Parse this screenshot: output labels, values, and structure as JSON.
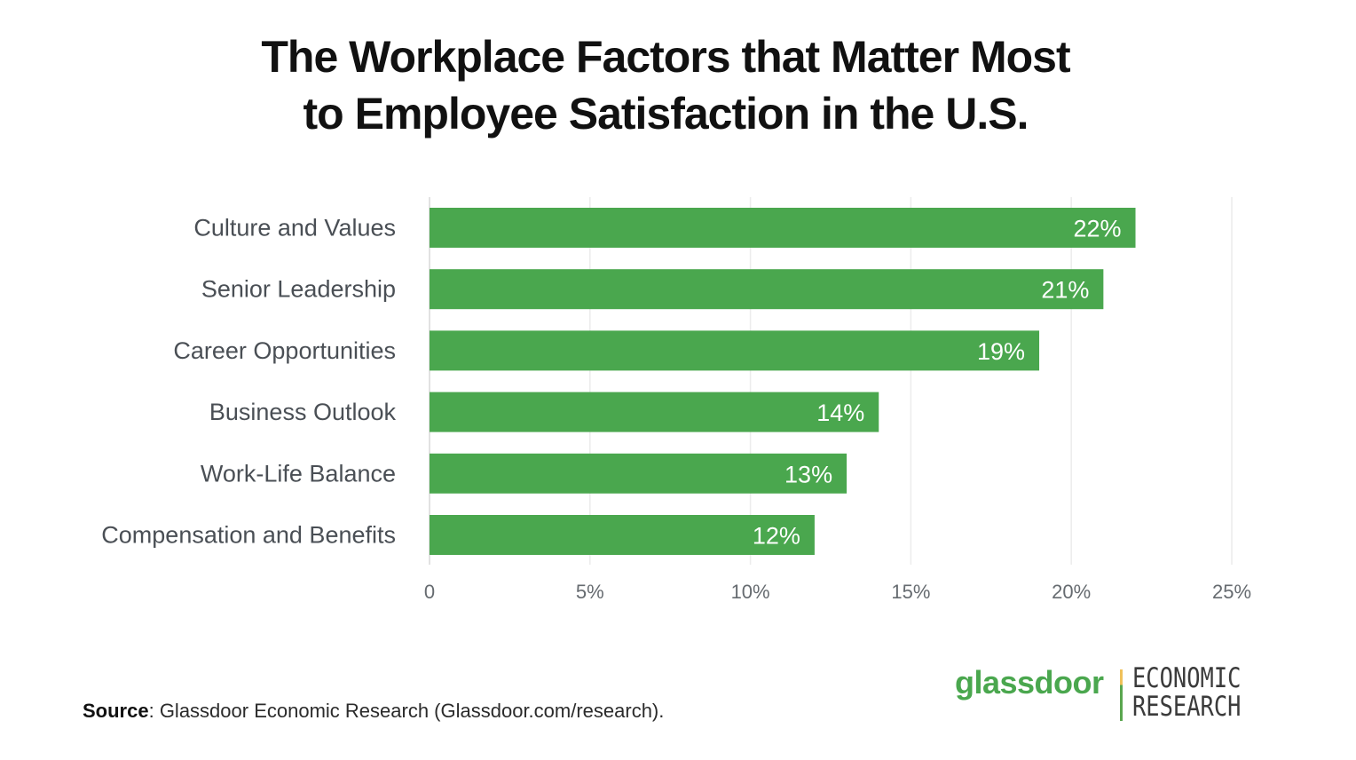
{
  "title": {
    "line1": "The Workplace Factors that Matter Most",
    "line2": "to Employee Satisfaction in the U.S."
  },
  "colors": {
    "bar": "#4aa74e",
    "grid": "#ececec",
    "axis": "#d8d8d8"
  },
  "chart_data": {
    "type": "bar",
    "orientation": "horizontal",
    "title": "The Workplace Factors that Matter Most to Employee Satisfaction in the U.S.",
    "categories": [
      "Culture and Values",
      "Senior Leadership",
      "Career Opportunities",
      "Business Outlook",
      "Work-Life Balance",
      "Compensation and Benefits"
    ],
    "values": [
      22,
      21,
      19,
      14,
      13,
      12
    ],
    "value_labels": [
      "22%",
      "21%",
      "19%",
      "14%",
      "13%",
      "12%"
    ],
    "xlim": [
      0,
      25
    ],
    "xticks": [
      0,
      5,
      10,
      15,
      20,
      25
    ],
    "xtick_labels": [
      "0",
      "5%",
      "10%",
      "15%",
      "20%",
      "25%"
    ],
    "xlabel": "",
    "ylabel": "",
    "grid": true
  },
  "source": {
    "key": "Source",
    "text": ": Glassdoor Economic Research (Glassdoor.com/research)."
  },
  "logo": {
    "brand": "glassdoor",
    "unit_line1": "ECONOMIC",
    "unit_line2": "RESEARCH"
  }
}
